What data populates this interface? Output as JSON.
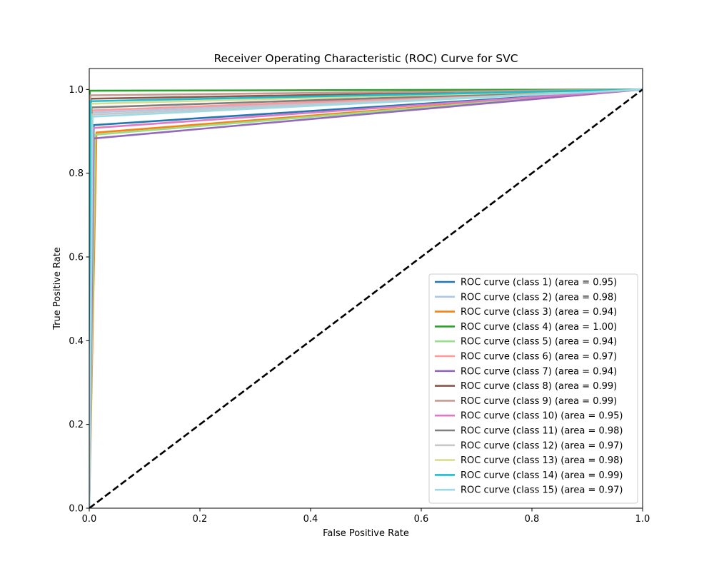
{
  "chart_data": {
    "type": "line",
    "title": "Receiver Operating Characteristic (ROC) Curve for SVC",
    "xlabel": "False Positive Rate",
    "ylabel": "True Positive Rate",
    "xlim": [
      0.0,
      1.0
    ],
    "ylim": [
      0.0,
      1.05
    ],
    "xticks": [
      "0.0",
      "0.2",
      "0.4",
      "0.6",
      "0.8",
      "1.0"
    ],
    "yticks": [
      "0.0",
      "0.2",
      "0.4",
      "0.6",
      "0.8",
      "1.0"
    ],
    "grid": false,
    "legend_position": "lower-right",
    "series": [
      {
        "name": "ROC curve (class 1) (area = 0.95)",
        "color": "#1f77b4",
        "x": [
          0.0,
          0.008,
          1.0
        ],
        "y": [
          0.0,
          0.915,
          1.0
        ]
      },
      {
        "name": "ROC curve (class 2) (area = 0.98)",
        "color": "#aec7e8",
        "x": [
          0.0,
          0.004,
          1.0
        ],
        "y": [
          0.0,
          0.945,
          1.0
        ]
      },
      {
        "name": "ROC curve (class 3) (area = 0.94)",
        "color": "#ff7f0e",
        "x": [
          0.0,
          0.013,
          1.0
        ],
        "y": [
          0.0,
          0.897,
          1.0
        ]
      },
      {
        "name": "ROC curve (class 4) (area = 1.00)",
        "color": "#2ca02c",
        "x": [
          0.0,
          0.001,
          1.0
        ],
        "y": [
          0.0,
          0.997,
          1.0
        ]
      },
      {
        "name": "ROC curve (class 5) (area = 0.94)",
        "color": "#98df8a",
        "x": [
          0.0,
          0.011,
          1.0
        ],
        "y": [
          0.0,
          0.892,
          1.0
        ]
      },
      {
        "name": "ROC curve (class 6) (area = 0.97)",
        "color": "#ff9896",
        "x": [
          0.0,
          0.005,
          1.0
        ],
        "y": [
          0.0,
          0.95,
          1.0
        ]
      },
      {
        "name": "ROC curve (class 7) (area = 0.94)",
        "color": "#9467bd",
        "x": [
          0.0,
          0.008,
          1.0
        ],
        "y": [
          0.0,
          0.883,
          1.0
        ]
      },
      {
        "name": "ROC curve (class 8) (area = 0.99)",
        "color": "#8c564b",
        "x": [
          0.0,
          0.003,
          1.0
        ],
        "y": [
          0.0,
          0.978,
          1.0
        ]
      },
      {
        "name": "ROC curve (class 9) (area = 0.99)",
        "color": "#c49c94",
        "x": [
          0.0,
          0.002,
          1.0
        ],
        "y": [
          0.0,
          0.986,
          1.0
        ]
      },
      {
        "name": "ROC curve (class 10) (area = 0.95)",
        "color": "#e377c2",
        "x": [
          0.0,
          0.007,
          1.0
        ],
        "y": [
          0.0,
          0.908,
          1.0
        ]
      },
      {
        "name": "ROC curve (class 11) (area = 0.98)",
        "color": "#7f7f7f",
        "x": [
          0.0,
          0.004,
          1.0
        ],
        "y": [
          0.0,
          0.957,
          1.0
        ]
      },
      {
        "name": "ROC curve (class 12) (area = 0.97)",
        "color": "#c7c7c7",
        "x": [
          0.0,
          0.005,
          1.0
        ],
        "y": [
          0.0,
          0.94,
          1.0
        ]
      },
      {
        "name": "ROC curve (class 13) (area = 0.98)",
        "color": "#dbdb8d",
        "x": [
          0.0,
          0.003,
          1.0
        ],
        "y": [
          0.0,
          0.966,
          1.0
        ]
      },
      {
        "name": "ROC curve (class 14) (area = 0.99)",
        "color": "#17becf",
        "x": [
          0.0,
          0.002,
          1.0
        ],
        "y": [
          0.0,
          0.972,
          1.0
        ]
      },
      {
        "name": "ROC curve (class 15) (area = 0.97)",
        "color": "#9edae5",
        "x": [
          0.0,
          0.006,
          1.0
        ],
        "y": [
          0.0,
          0.935,
          1.0
        ]
      }
    ],
    "reference_line": {
      "x": [
        0.0,
        1.0
      ],
      "y": [
        0.0,
        1.0
      ],
      "color": "#000000",
      "style": "dashed"
    }
  }
}
